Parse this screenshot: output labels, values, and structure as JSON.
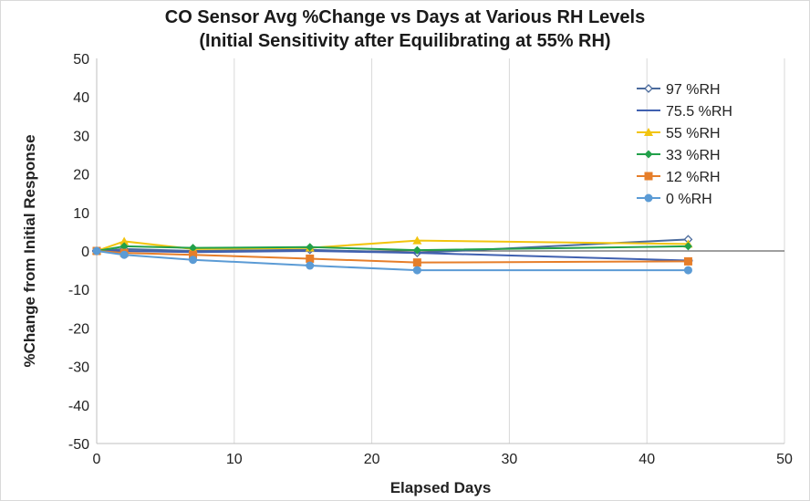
{
  "chart_data": {
    "type": "line",
    "title": "CO Sensor Avg %Change vs Days at Various RH Levels",
    "subtitle": "(Initial Sensitivity after Equilibrating at 55% RH)",
    "xlabel": "Elapsed Days",
    "ylabel": "%Change from Initial Response",
    "xlim": [
      0,
      50
    ],
    "ylim": [
      -50,
      50
    ],
    "xticks": [
      0,
      10,
      20,
      30,
      40,
      50
    ],
    "yticks": [
      50,
      40,
      30,
      20,
      10,
      0,
      -10,
      -20,
      -30,
      -40,
      -50
    ],
    "grid": "vertical",
    "legend_position": "right",
    "series": [
      {
        "name": "97 %RH",
        "color": "#4a6a9c",
        "marker": "diamond-open",
        "x": [
          0,
          2,
          7,
          15.5,
          23.3,
          43
        ],
        "y": [
          0,
          0.5,
          0,
          0.3,
          -0.5,
          3
        ]
      },
      {
        "name": "75.5 %RH",
        "color": "#4060b0",
        "marker": "dash",
        "x": [
          0,
          2,
          7,
          15.5,
          23.3,
          43
        ],
        "y": [
          0,
          0,
          -0.3,
          0,
          -0.5,
          -2.5
        ]
      },
      {
        "name": "55 %RH",
        "color": "#f2c40f",
        "marker": "triangle",
        "x": [
          0,
          2,
          7,
          15.5,
          23.3,
          43
        ],
        "y": [
          0,
          2.5,
          0.5,
          0.8,
          2.7,
          1.8
        ]
      },
      {
        "name": "33 %RH",
        "color": "#22a04a",
        "marker": "diamond",
        "x": [
          0,
          2,
          7,
          15.5,
          23.3,
          43
        ],
        "y": [
          0,
          1.2,
          0.8,
          1,
          0.2,
          1.2
        ]
      },
      {
        "name": "12 %RH",
        "color": "#e67e2a",
        "marker": "square",
        "x": [
          0,
          2,
          7,
          15.5,
          23.3,
          43
        ],
        "y": [
          0,
          -0.5,
          -1,
          -2,
          -3,
          -2.7
        ]
      },
      {
        "name": "0 %RH",
        "color": "#5b9bd5",
        "marker": "circle",
        "x": [
          0,
          2,
          7,
          15.5,
          23.3,
          43
        ],
        "y": [
          0,
          -1,
          -2.3,
          -3.8,
          -5,
          -5
        ]
      }
    ]
  }
}
